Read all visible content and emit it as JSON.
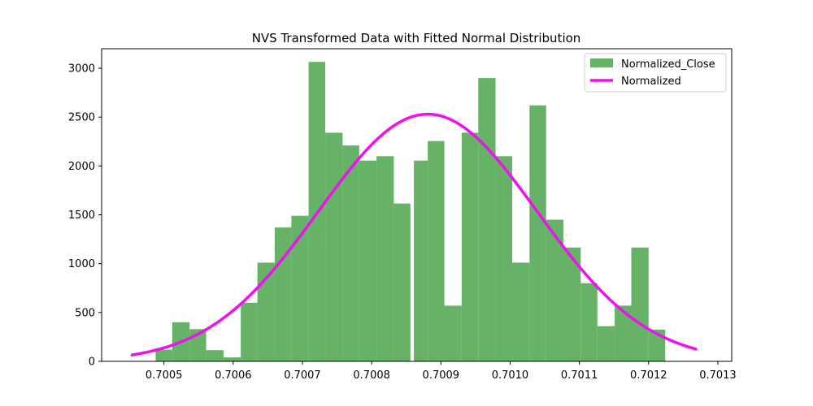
{
  "chart_data": {
    "type": "bar",
    "title": "NVS Transformed Data with Fitted Normal Distribution",
    "xlabel": "",
    "ylabel": "",
    "xlim": [
      0.70041,
      0.70132
    ],
    "ylim": [
      0,
      3200
    ],
    "x_ticks": [
      "0.7005",
      "0.7006",
      "0.7007",
      "0.7008",
      "0.7009",
      "0.7010",
      "0.7011",
      "0.7012",
      "0.7013"
    ],
    "y_ticks": [
      "0",
      "500",
      "1000",
      "1500",
      "2000",
      "2500",
      "3000"
    ],
    "grid": false,
    "legend_position": "top-right",
    "histogram": {
      "name": "Normalized_Close",
      "color": "#66b266",
      "bins": [
        {
          "x0": 0.700488,
          "x1": 0.700512,
          "count": 120
        },
        {
          "x0": 0.700512,
          "x1": 0.700537,
          "count": 400
        },
        {
          "x0": 0.700537,
          "x1": 0.700561,
          "count": 330
        },
        {
          "x0": 0.700561,
          "x1": 0.700586,
          "count": 115
        },
        {
          "x0": 0.700586,
          "x1": 0.700611,
          "count": 40
        },
        {
          "x0": 0.700611,
          "x1": 0.700635,
          "count": 600
        },
        {
          "x0": 0.700635,
          "x1": 0.70066,
          "count": 1010
        },
        {
          "x0": 0.70066,
          "x1": 0.700684,
          "count": 1370
        },
        {
          "x0": 0.700684,
          "x1": 0.700709,
          "count": 1490
        },
        {
          "x0": 0.700709,
          "x1": 0.700733,
          "count": 3065
        },
        {
          "x0": 0.700733,
          "x1": 0.700758,
          "count": 2340
        },
        {
          "x0": 0.700758,
          "x1": 0.700782,
          "count": 2210
        },
        {
          "x0": 0.700782,
          "x1": 0.700807,
          "count": 2055
        },
        {
          "x0": 0.700807,
          "x1": 0.700832,
          "count": 2100
        },
        {
          "x0": 0.700832,
          "x1": 0.700856,
          "count": 1615
        },
        {
          "x0": 0.700861,
          "x1": 0.700881,
          "count": 2055
        },
        {
          "x0": 0.700881,
          "x1": 0.700905,
          "count": 2255
        },
        {
          "x0": 0.700905,
          "x1": 0.70093,
          "count": 570
        },
        {
          "x0": 0.70093,
          "x1": 0.700954,
          "count": 2340
        },
        {
          "x0": 0.700954,
          "x1": 0.700979,
          "count": 2900
        },
        {
          "x0": 0.700979,
          "x1": 0.701003,
          "count": 2100
        },
        {
          "x0": 0.701003,
          "x1": 0.701028,
          "count": 1010
        },
        {
          "x0": 0.701028,
          "x1": 0.701052,
          "count": 2620
        },
        {
          "x0": 0.701052,
          "x1": 0.701077,
          "count": 1450
        },
        {
          "x0": 0.701077,
          "x1": 0.701102,
          "count": 1165
        },
        {
          "x0": 0.701102,
          "x1": 0.701126,
          "count": 800
        },
        {
          "x0": 0.701126,
          "x1": 0.701151,
          "count": 360
        },
        {
          "x0": 0.701151,
          "x1": 0.701175,
          "count": 570
        },
        {
          "x0": 0.701175,
          "x1": 0.7012,
          "count": 1165
        },
        {
          "x0": 0.7012,
          "x1": 0.701224,
          "count": 325
        }
      ]
    },
    "fitted_curve": {
      "name": "Normalized",
      "color": "#ee11ee",
      "x_range": [
        0.700454,
        0.701268
      ],
      "mean": 0.700881,
      "std": 0.000158,
      "peak": 2530
    }
  }
}
